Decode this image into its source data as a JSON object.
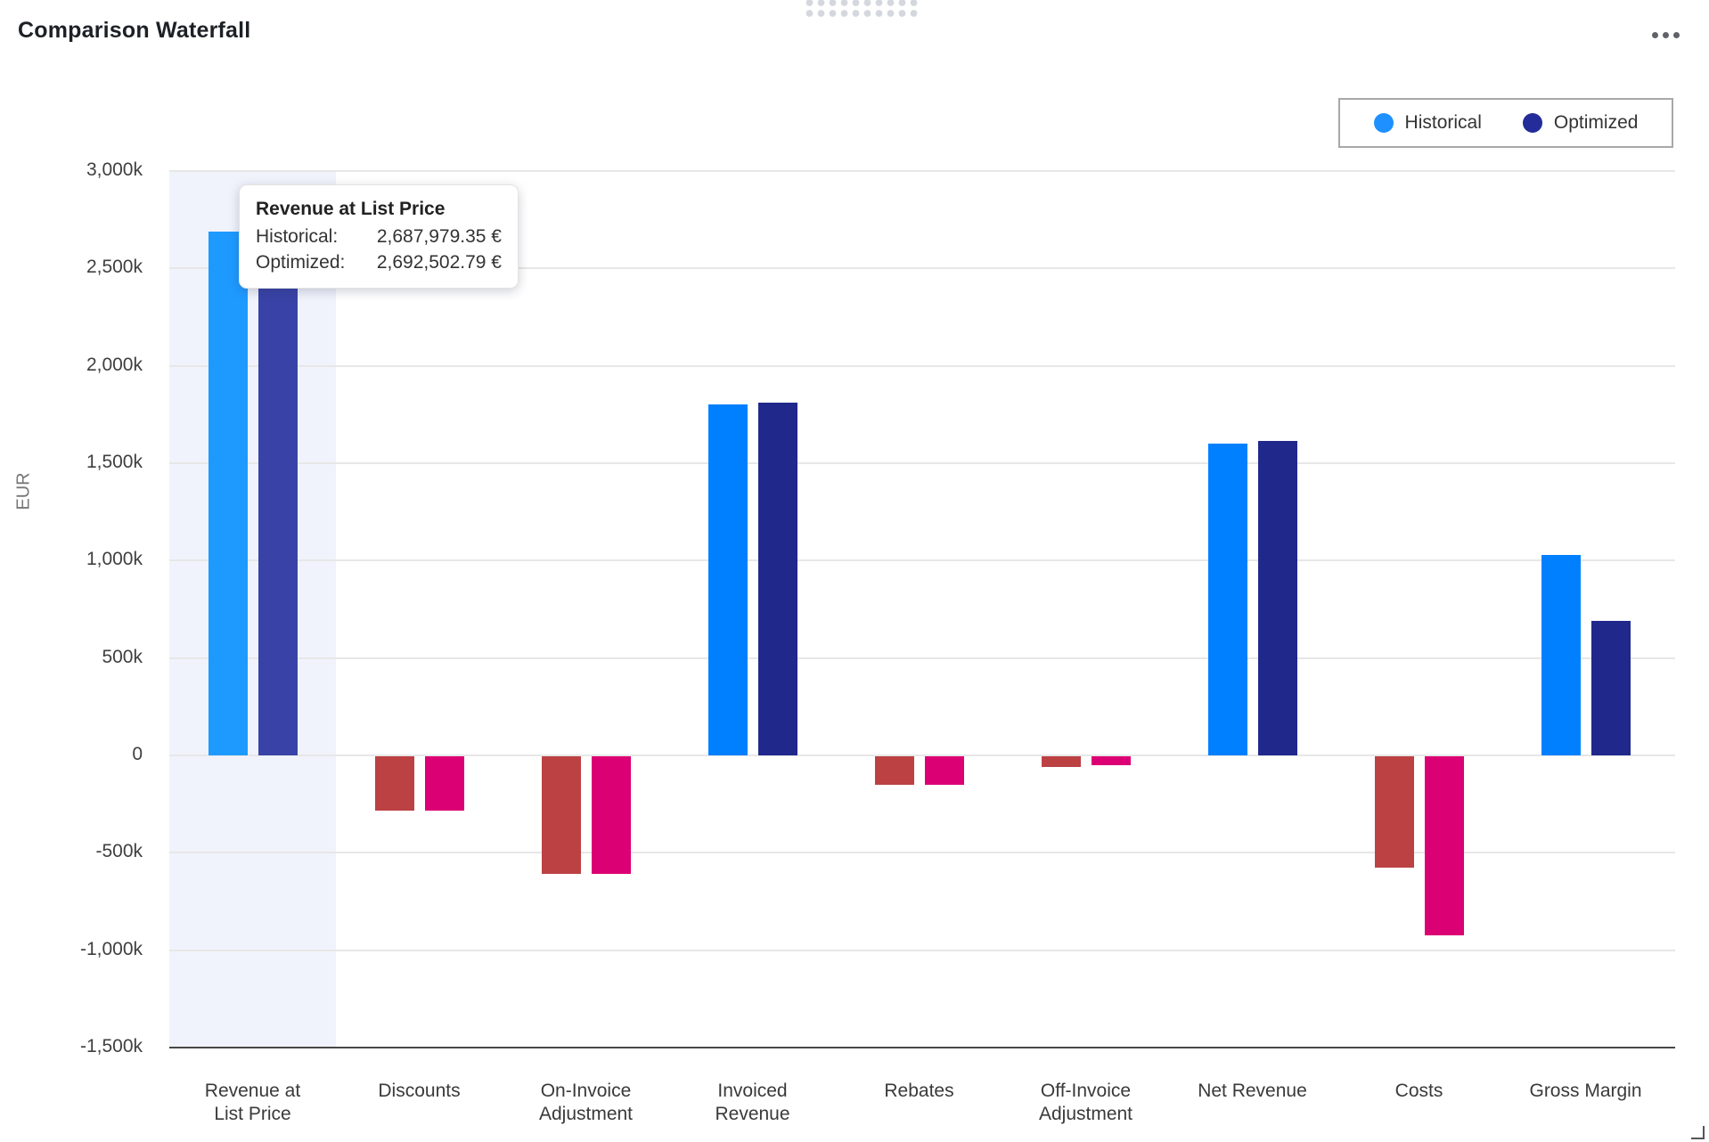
{
  "header": {
    "title": "Comparison Waterfall"
  },
  "legend": {
    "items": [
      {
        "label": "Historical",
        "color": "#1E90FF"
      },
      {
        "label": "Optimized",
        "color": "#232C99"
      }
    ]
  },
  "tooltip": {
    "title": "Revenue at List Price",
    "rows": [
      {
        "label": "Historical:",
        "value": "2,687,979.35 €"
      },
      {
        "label": "Optimized:",
        "value": "2,692,502.79 €"
      }
    ]
  },
  "chart_data": {
    "type": "bar",
    "title": "Comparison Waterfall",
    "xlabel": "",
    "ylabel": "EUR",
    "unit": "thousand EUR (k)",
    "categories": [
      "Revenue at\nList Price",
      "Discounts",
      "On-Invoice\nAdjustment",
      "Invoiced\nRevenue",
      "Rebates",
      "Off-Invoice\nAdjustment",
      "Net Revenue",
      "Costs",
      "Gross Margin"
    ],
    "series": [
      {
        "name": "Historical",
        "values": [
          2687.979,
          -280,
          -605,
          1800,
          -145,
          -55,
          1600,
          -570,
          1030
        ]
      },
      {
        "name": "Optimized",
        "values": [
          2692.503,
          -280,
          -605,
          1810,
          -145,
          -45,
          1615,
          -920,
          690
        ]
      }
    ],
    "ylim": [
      -1500,
      3000
    ],
    "ytick_step": 500,
    "ytick_labels": [
      "3,000k",
      "2,500k",
      "2,000k",
      "1,500k",
      "1,000k",
      "500k",
      "0",
      "-500k",
      "-1,000k",
      "-1,500k"
    ],
    "grid": true,
    "legend_position": "top-right",
    "highlighted_category_index": 0,
    "colors": {
      "historical_positive": "#0080FF",
      "historical_negative": "#BC4143",
      "optimized_positive": "#20288C",
      "optimized_negative": "#DB0074",
      "historical_positive_highlighted": "#1E9AFF",
      "optimized_positive_highlighted": "#3943A7",
      "highlight_band": "#F0F3FC",
      "gridline": "#E7E7E7",
      "bottom_axis_line": "#474747"
    }
  }
}
